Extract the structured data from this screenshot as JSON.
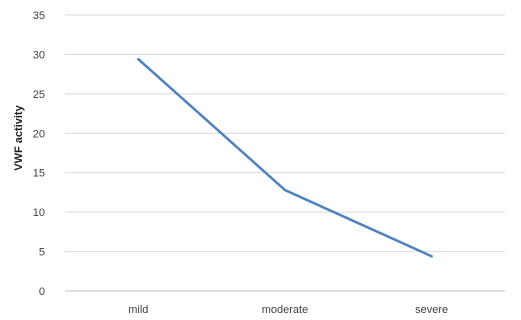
{
  "chart_data": {
    "type": "line",
    "categories": [
      "mild",
      "moderate",
      "severe"
    ],
    "series": [
      {
        "values": [
          29.4,
          12.8,
          4.4
        ],
        "color": "#4f81bd"
      }
    ],
    "title": "",
    "xlabel": "",
    "ylabel": "VWF activity",
    "ylim": [
      0,
      35
    ],
    "yticks": [
      0,
      5,
      10,
      15,
      20,
      25,
      30,
      35
    ],
    "grid": true,
    "legend": "none"
  }
}
